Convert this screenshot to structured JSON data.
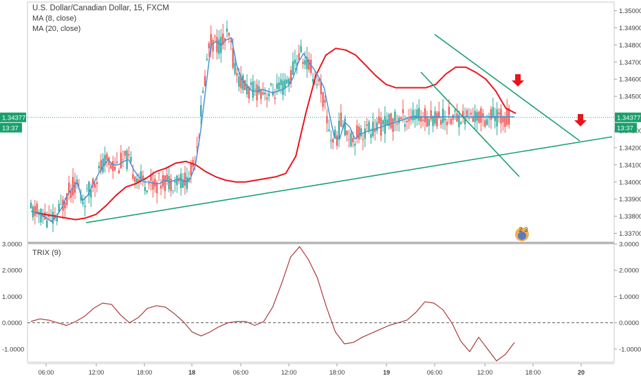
{
  "header": {
    "title": "U.S. Dollar/Canadian Dollar, 15, FXCM",
    "indicators": [
      "MA (8, close)",
      "MA (20, close)"
    ]
  },
  "trix_panel": {
    "label": "TRIX (9)"
  },
  "badges": {
    "price": "1.34377",
    "countdown": "13:37"
  },
  "watermark_text": "2 3",
  "colors": {
    "up": "#26a69a",
    "down": "#ef5350",
    "ma8": "#4a90d9",
    "ma20": "#e8141c",
    "trendline": "#1aa06e",
    "trix": "#a83a3a",
    "arrow": "#e8141c",
    "badge": "#1aa06e"
  },
  "chart_data": [
    {
      "type": "candlestick",
      "title": "U.S. Dollar/Canadian Dollar, 15, FXCM",
      "xlabel": "",
      "ylabel": "",
      "ylim": [
        1.3365,
        1.3505
      ],
      "y_ticks": [
        "1.33700",
        "1.33800",
        "1.33900",
        "1.34000",
        "1.34100",
        "1.34200",
        "1.34300",
        "1.34500",
        "1.34600",
        "1.34700",
        "1.34800",
        "1.34900",
        "1.35000"
      ],
      "x_ticks": [
        "06:00",
        "12:00",
        "18:00",
        "18",
        "06:00",
        "12:00",
        "18:00",
        "19",
        "06:00",
        "12:00",
        "18:00",
        "20"
      ],
      "bold_x_ticks": [
        "18",
        "19",
        "20"
      ],
      "last_price": 1.34377,
      "grid": false,
      "series": [
        {
          "name": "MA (8, close)",
          "x": [
            1,
            3,
            5,
            7,
            9,
            11,
            13,
            15,
            17,
            19,
            21,
            23,
            25,
            27,
            29,
            31,
            33,
            35,
            37,
            39,
            41,
            43,
            45,
            47,
            49,
            51,
            53,
            55,
            57,
            59,
            61,
            63,
            65,
            67,
            69,
            71,
            73,
            75,
            77,
            79,
            81,
            83,
            85,
            87,
            89,
            91,
            93,
            95,
            97,
            99,
            101,
            103,
            105,
            107,
            109,
            111,
            113,
            115,
            117,
            119,
            121,
            123,
            125,
            127,
            129,
            131,
            133,
            135,
            137,
            139,
            141,
            143,
            145,
            147,
            149,
            151,
            153,
            155,
            157,
            159,
            161,
            163,
            165,
            167,
            169,
            171,
            173,
            175,
            177,
            179,
            181,
            183,
            185,
            187,
            189
          ],
          "values": [
            1.3383,
            1.3382,
            1.3381,
            1.3379,
            1.3377,
            1.338,
            1.3385,
            1.3392,
            1.3396,
            1.34,
            1.3389,
            1.3392,
            1.3398,
            1.3404,
            1.3409,
            1.3413,
            1.341,
            1.341,
            1.3412,
            1.3413,
            1.3407,
            1.3403,
            1.34,
            1.34,
            1.3399,
            1.3399,
            1.3401,
            1.34,
            1.3401,
            1.3402,
            1.34,
            1.3402,
            1.341,
            1.343,
            1.3455,
            1.348,
            1.3482,
            1.348,
            1.3483,
            1.3484,
            1.3468,
            1.346,
            1.3456,
            1.3453,
            1.3453,
            1.3454,
            1.3453,
            1.3452,
            1.3453,
            1.3454,
            1.3456,
            1.3461,
            1.347,
            1.3475,
            1.347,
            1.3466,
            1.3461,
            1.3455,
            1.344,
            1.3426,
            1.3425,
            1.3435,
            1.3432,
            1.3425,
            1.3428,
            1.3429,
            1.343,
            1.3431,
            1.3432,
            1.3433,
            1.3434,
            1.3435,
            1.3436,
            1.3437,
            1.3438,
            1.3438,
            1.3438,
            1.3438,
            1.3438,
            1.3438,
            1.3438,
            1.3438,
            1.3438,
            1.3438,
            1.3438,
            1.3438,
            1.3438,
            1.3438,
            1.3438,
            1.3438,
            1.3438,
            1.3438,
            1.3438,
            1.3438,
            1.3438
          ]
        },
        {
          "name": "MA (20, close)",
          "values": [
            1.3382,
            1.3381,
            1.338,
            1.3379,
            1.3378,
            1.3379,
            1.3381,
            1.3386,
            1.3392,
            1.3397,
            1.3399,
            1.3402,
            1.3406,
            1.3408,
            1.3411,
            1.3412,
            1.341,
            1.3406,
            1.3403,
            1.3401,
            1.34,
            1.34,
            1.3401,
            1.3402,
            1.3403,
            1.3405,
            1.3415,
            1.344,
            1.3462,
            1.3474,
            1.3478,
            1.3477,
            1.3474,
            1.3468,
            1.3462,
            1.3457,
            1.3455,
            1.3455,
            1.3455,
            1.3455,
            1.3457,
            1.3463,
            1.3467,
            1.3467,
            1.3464,
            1.346,
            1.3453,
            1.3443,
            1.344
          ]
        }
      ]
    },
    {
      "type": "line",
      "title": "TRIX (9)",
      "xlabel": "",
      "ylabel": "",
      "ylim": [
        -1.5,
        3.0
      ],
      "y_ticks": [
        "3.0000",
        "2.0000",
        "1.0000",
        "0.0000",
        "-1.0000"
      ],
      "zero_line": 0,
      "series": [
        {
          "name": "TRIX (9)",
          "values": [
            0.05,
            0.15,
            0.1,
            0.0,
            -0.1,
            0.05,
            0.25,
            0.55,
            0.75,
            0.7,
            0.3,
            0.0,
            0.2,
            0.55,
            0.65,
            0.6,
            0.35,
            0.05,
            -0.35,
            -0.5,
            -0.35,
            -0.15,
            0.0,
            0.05,
            0.05,
            -0.1,
            0.05,
            0.6,
            1.5,
            2.5,
            2.9,
            2.4,
            1.7,
            0.6,
            -0.35,
            -0.8,
            -0.75,
            -0.55,
            -0.4,
            -0.25,
            -0.1,
            0.0,
            0.1,
            0.4,
            0.8,
            0.75,
            0.5,
            0.0,
            -0.7,
            -1.1,
            -0.55,
            -1.0,
            -1.45,
            -1.2,
            -0.75
          ]
        }
      ]
    }
  ]
}
